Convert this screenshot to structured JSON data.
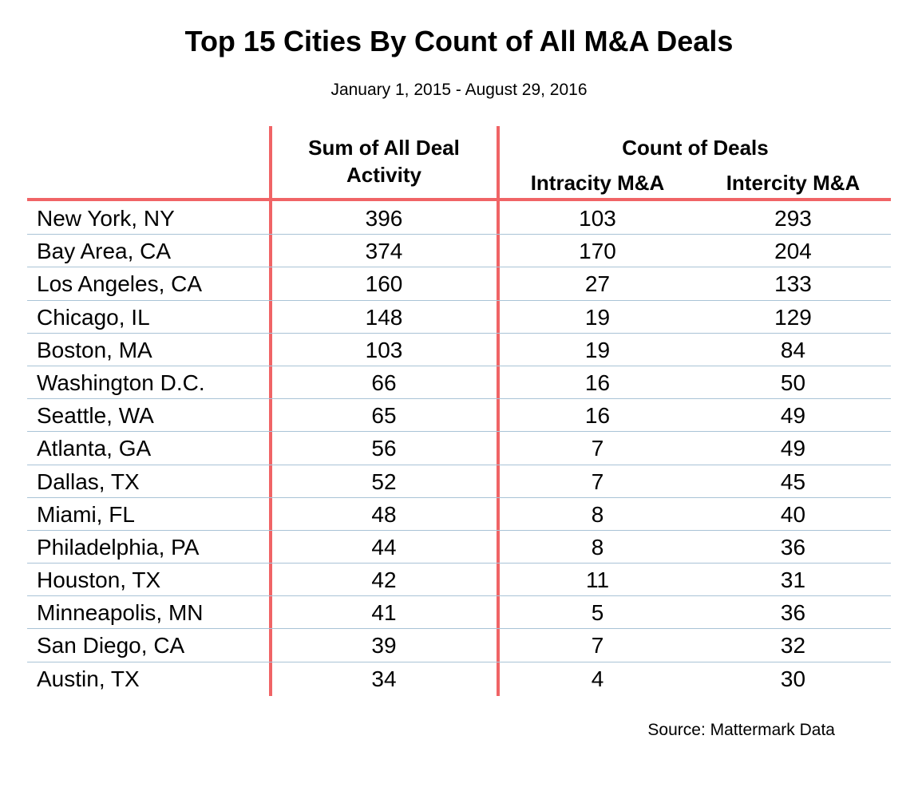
{
  "title": "Top 15 Cities By Count of All M&A Deals",
  "subtitle": "January 1, 2015 - August 29, 2016",
  "source": "Source: Mattermark Data",
  "colors": {
    "rule": "#f06466",
    "row_separator": "#a9c3d6",
    "text": "#000000"
  },
  "headers": {
    "sum_line1": "Sum of All Deal",
    "sum_line2": "Activity",
    "count_group": "Count of Deals",
    "intracity": "Intracity M&A",
    "intercity": "Intercity M&A"
  },
  "chart_data": {
    "type": "table",
    "title": "Top 15 Cities By Count of All M&A Deals",
    "subtitle": "January 1, 2015 - August 29, 2016",
    "columns": [
      "Sum of All Deal Activity",
      "Intracity M&A",
      "Intercity M&A"
    ],
    "column_group": "Count of Deals",
    "rows": [
      {
        "city": "New York, NY",
        "sum": "396",
        "intracity": "103",
        "intercity": "293"
      },
      {
        "city": "Bay Area, CA",
        "sum": "374",
        "intracity": "170",
        "intercity": "204"
      },
      {
        "city": "Los Angeles, CA",
        "sum": "160",
        "intracity": "27",
        "intercity": "133"
      },
      {
        "city": "Chicago, IL",
        "sum": "148",
        "intracity": "19",
        "intercity": "129"
      },
      {
        "city": "Boston, MA",
        "sum": "103",
        "intracity": "19",
        "intercity": "84"
      },
      {
        "city": "Washington D.C.",
        "sum": "66",
        "intracity": "16",
        "intercity": "50"
      },
      {
        "city": "Seattle, WA",
        "sum": "65",
        "intracity": "16",
        "intercity": "49"
      },
      {
        "city": "Atlanta, GA",
        "sum": "56",
        "intracity": "7",
        "intercity": "49"
      },
      {
        "city": "Dallas, TX",
        "sum": "52",
        "intracity": "7",
        "intercity": "45"
      },
      {
        "city": "Miami, FL",
        "sum": "48",
        "intracity": "8",
        "intercity": "40"
      },
      {
        "city": "Philadelphia, PA",
        "sum": "44",
        "intracity": "8",
        "intercity": "36"
      },
      {
        "city": "Houston, TX",
        "sum": "42",
        "intracity": "11",
        "intercity": "31"
      },
      {
        "city": "Minneapolis, MN",
        "sum": "41",
        "intracity": "5",
        "intercity": "36"
      },
      {
        "city": "San Diego, CA",
        "sum": "39",
        "intracity": "7",
        "intercity": "32"
      },
      {
        "city": "Austin, TX",
        "sum": "34",
        "intracity": "4",
        "intercity": "30"
      }
    ],
    "source": "Source: Mattermark Data"
  }
}
